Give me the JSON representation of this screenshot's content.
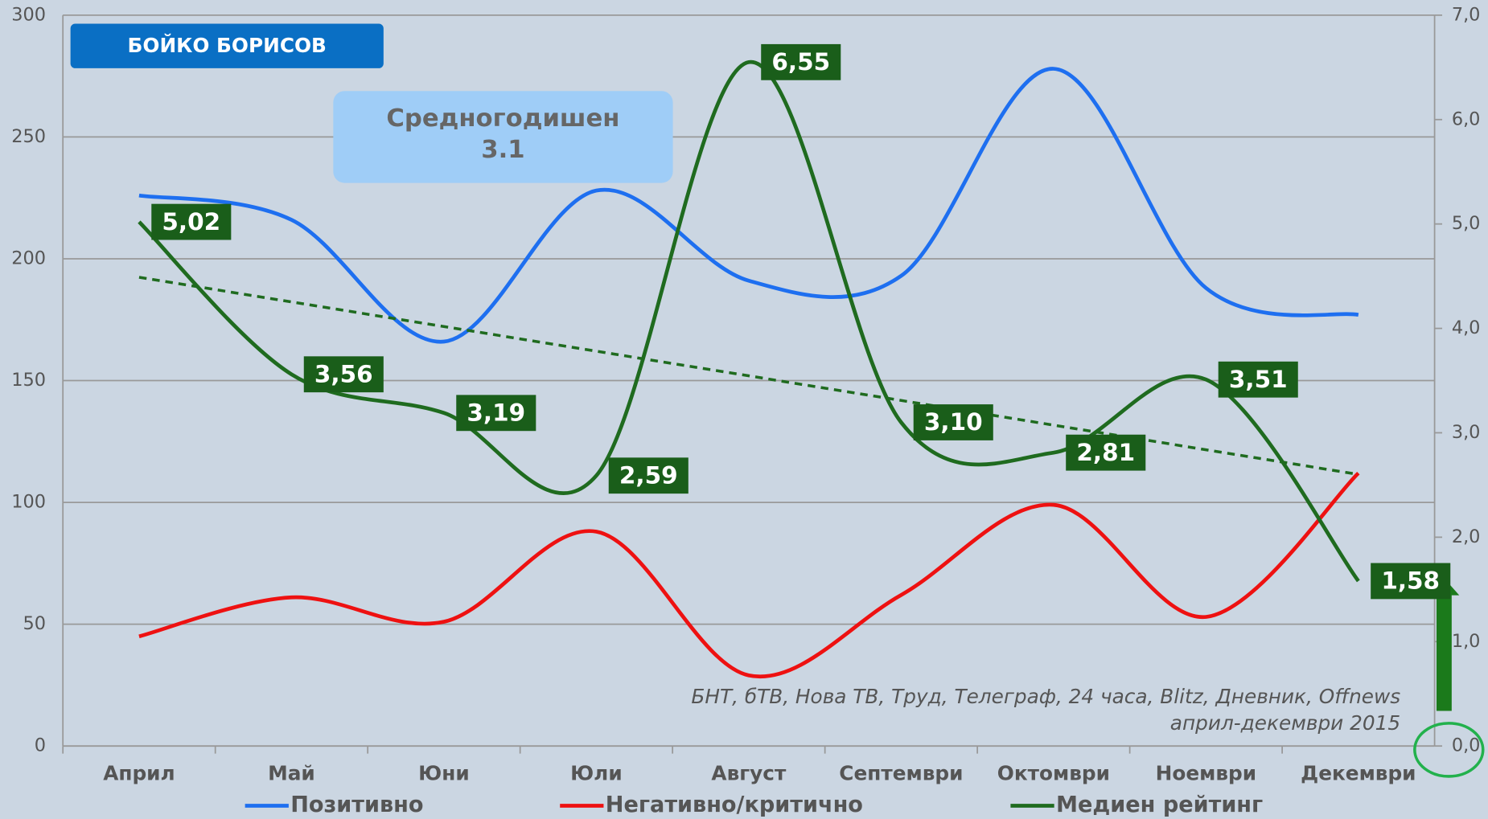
{
  "chart_data": {
    "type": "line",
    "title": "БОЙКО БОРИСОВ",
    "annotation": {
      "title": "Средногодишен",
      "value": "3.1"
    },
    "source": [
      "БНТ, бТВ, Нова ТВ, Труд, Телеграф, 24 часа, Blitz, Дневник, Offnews",
      "април-декември 2015"
    ],
    "categories": [
      "Април",
      "Май",
      "Юни",
      "Юли",
      "Август",
      "Септември",
      "Октомври",
      "Ноември",
      "Декември"
    ],
    "series": [
      {
        "name": "Позитивно",
        "color": "#1e6ff0",
        "values": [
          226,
          216,
          166,
          228,
          191,
          193,
          278,
          188,
          177
        ]
      },
      {
        "name": "Негативно/критично",
        "color": "#ee1111",
        "values": [
          45,
          61,
          51,
          88,
          29,
          62,
          99,
          53,
          112
        ]
      },
      {
        "name": "Медиен рейтинг",
        "color": "#1f6b1f",
        "axis": "y2",
        "trendline": true,
        "values": [
          5.02,
          3.56,
          3.19,
          2.59,
          6.55,
          3.1,
          2.81,
          3.51,
          1.58
        ],
        "value_labels": [
          "5,02",
          "3,56",
          "3,19",
          "2,59",
          "6,55",
          "3,10",
          "2,81",
          "3,51",
          "1,58"
        ]
      }
    ],
    "ylim": [
      0,
      300
    ],
    "yticks": [
      0,
      50,
      100,
      150,
      200,
      250,
      300
    ],
    "y2lim": [
      0,
      7
    ],
    "y2ticks": [
      {
        "value": 0,
        "label": "0,0"
      },
      {
        "value": 1,
        "label": "1,0"
      },
      {
        "value": 2,
        "label": "2,0"
      },
      {
        "value": 3,
        "label": "3,0"
      },
      {
        "value": 4,
        "label": "4,0"
      },
      {
        "value": 5,
        "label": "5,0"
      },
      {
        "value": 6,
        "label": "6,0"
      },
      {
        "value": 7,
        "label": "7,0"
      }
    ],
    "grid": true,
    "legend": "bottom"
  }
}
